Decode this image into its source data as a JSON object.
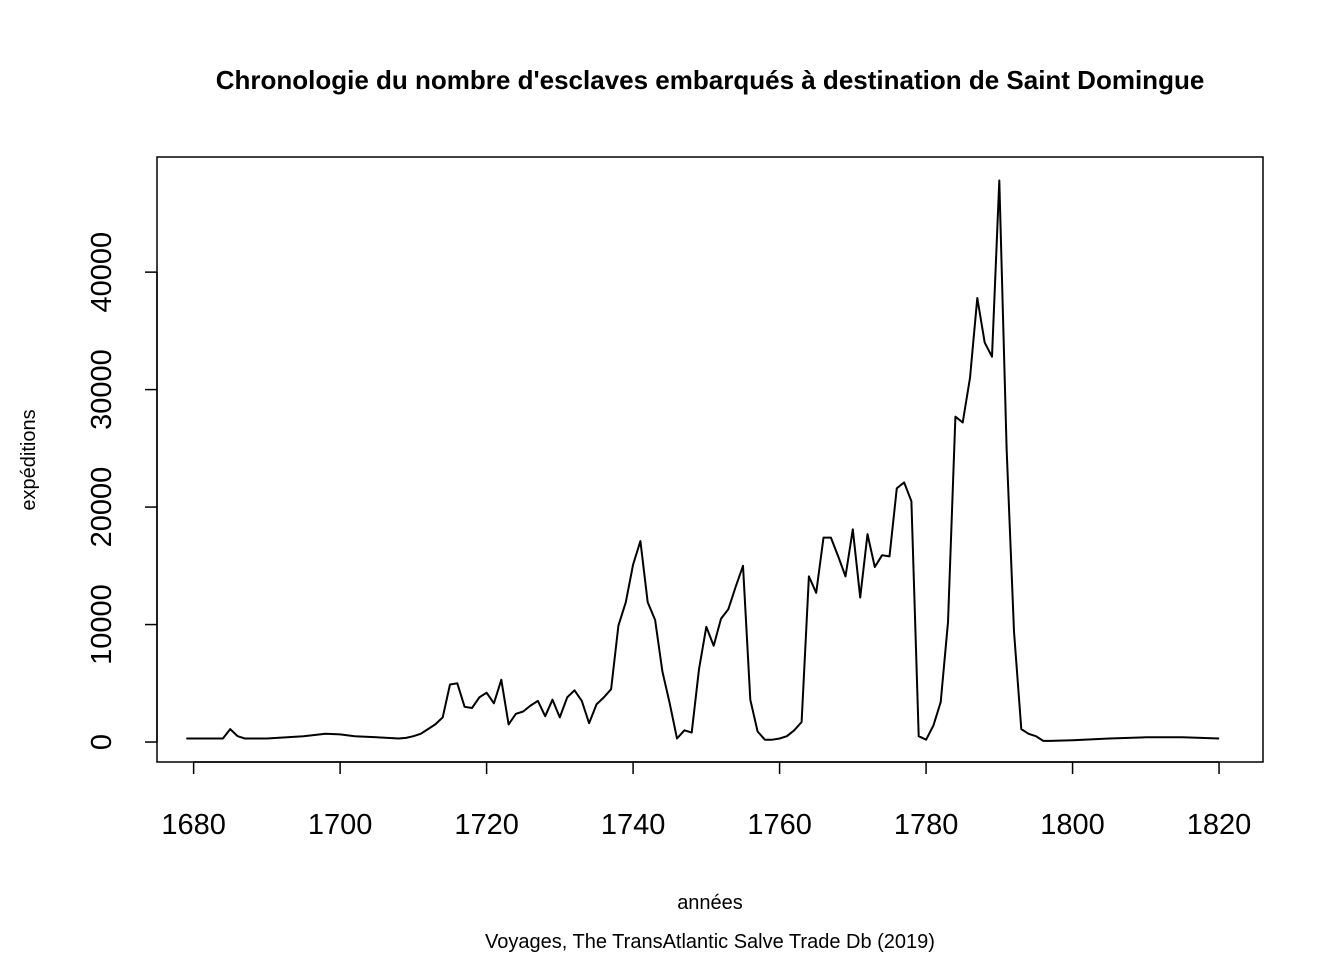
{
  "chart_data": {
    "type": "line",
    "title": "Chronologie du nombre d'esclaves embarqués à destination de Saint Domingue",
    "xlabel": "années",
    "ylabel": "expéditions",
    "caption": "Voyages, The TransAtlantic Salve Trade Db (2019)",
    "xlim": [
      1675,
      1826
    ],
    "ylim": [
      -1700,
      49800
    ],
    "xticks": [
      1680,
      1700,
      1720,
      1740,
      1760,
      1780,
      1800,
      1820
    ],
    "yticks": [
      0,
      10000,
      20000,
      30000,
      40000
    ],
    "grid": false,
    "legend": "none",
    "series": [
      {
        "color": "#000000",
        "points": [
          [
            1679,
            300
          ],
          [
            1684,
            300
          ],
          [
            1685,
            1100
          ],
          [
            1686,
            500
          ],
          [
            1687,
            300
          ],
          [
            1690,
            300
          ],
          [
            1695,
            500
          ],
          [
            1698,
            700
          ],
          [
            1700,
            650
          ],
          [
            1702,
            500
          ],
          [
            1705,
            400
          ],
          [
            1708,
            300
          ],
          [
            1709,
            350
          ],
          [
            1710,
            500
          ],
          [
            1711,
            700
          ],
          [
            1712,
            1100
          ],
          [
            1713,
            1500
          ],
          [
            1714,
            2100
          ],
          [
            1715,
            4900
          ],
          [
            1716,
            5000
          ],
          [
            1717,
            3000
          ],
          [
            1718,
            2900
          ],
          [
            1719,
            3800
          ],
          [
            1720,
            4200
          ],
          [
            1721,
            3300
          ],
          [
            1722,
            5300
          ],
          [
            1723,
            1500
          ],
          [
            1724,
            2400
          ],
          [
            1725,
            2600
          ],
          [
            1726,
            3100
          ],
          [
            1727,
            3500
          ],
          [
            1728,
            2200
          ],
          [
            1729,
            3600
          ],
          [
            1730,
            2100
          ],
          [
            1731,
            3800
          ],
          [
            1732,
            4400
          ],
          [
            1733,
            3500
          ],
          [
            1734,
            1600
          ],
          [
            1735,
            3200
          ],
          [
            1736,
            3800
          ],
          [
            1737,
            4500
          ],
          [
            1738,
            9900
          ],
          [
            1739,
            11900
          ],
          [
            1740,
            15100
          ],
          [
            1741,
            17100
          ],
          [
            1742,
            11900
          ],
          [
            1743,
            10400
          ],
          [
            1744,
            6000
          ],
          [
            1745,
            3300
          ],
          [
            1746,
            300
          ],
          [
            1747,
            1000
          ],
          [
            1748,
            800
          ],
          [
            1749,
            6200
          ],
          [
            1750,
            9800
          ],
          [
            1751,
            8200
          ],
          [
            1752,
            10500
          ],
          [
            1753,
            11300
          ],
          [
            1754,
            13200
          ],
          [
            1755,
            15000
          ],
          [
            1756,
            3600
          ],
          [
            1757,
            900
          ],
          [
            1758,
            200
          ],
          [
            1759,
            200
          ],
          [
            1760,
            300
          ],
          [
            1761,
            500
          ],
          [
            1762,
            1000
          ],
          [
            1763,
            1700
          ],
          [
            1764,
            14100
          ],
          [
            1765,
            12700
          ],
          [
            1766,
            17400
          ],
          [
            1767,
            17400
          ],
          [
            1768,
            15800
          ],
          [
            1769,
            14100
          ],
          [
            1770,
            18100
          ],
          [
            1771,
            12300
          ],
          [
            1772,
            17700
          ],
          [
            1773,
            14900
          ],
          [
            1774,
            15900
          ],
          [
            1775,
            15800
          ],
          [
            1776,
            21600
          ],
          [
            1777,
            22100
          ],
          [
            1778,
            20500
          ],
          [
            1779,
            500
          ],
          [
            1780,
            200
          ],
          [
            1781,
            1400
          ],
          [
            1782,
            3400
          ],
          [
            1783,
            10200
          ],
          [
            1784,
            27700
          ],
          [
            1785,
            27200
          ],
          [
            1786,
            31000
          ],
          [
            1787,
            37800
          ],
          [
            1788,
            34000
          ],
          [
            1789,
            32800
          ],
          [
            1790,
            47800
          ],
          [
            1791,
            25000
          ],
          [
            1792,
            9400
          ],
          [
            1793,
            1100
          ],
          [
            1794,
            700
          ],
          [
            1795,
            500
          ],
          [
            1796,
            100
          ],
          [
            1797,
            100
          ],
          [
            1800,
            150
          ],
          [
            1805,
            300
          ],
          [
            1810,
            400
          ],
          [
            1815,
            400
          ],
          [
            1820,
            300
          ]
        ]
      }
    ]
  }
}
